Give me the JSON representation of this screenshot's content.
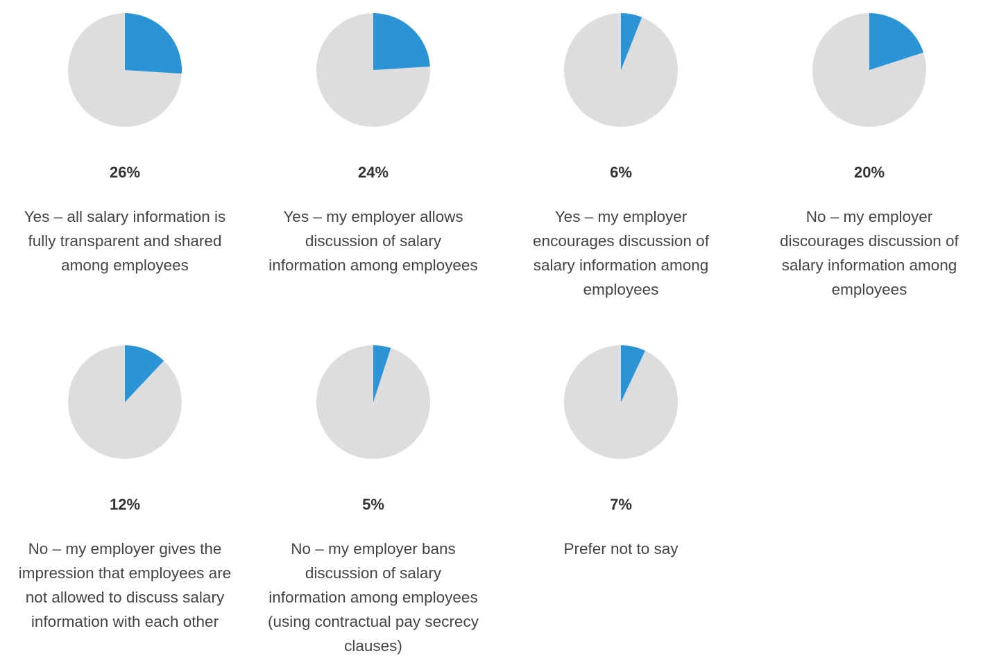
{
  "chart_data": {
    "type": "pie",
    "colors": {
      "highlight": "#2a94d6",
      "remainder": "#dddddd"
    },
    "charts": [
      {
        "value": 26,
        "value_label": "26%",
        "label": "Yes – all salary information is fully transparent and shared among employees"
      },
      {
        "value": 24,
        "value_label": "24%",
        "label": "Yes – my employer allows discussion of salary information among employees"
      },
      {
        "value": 6,
        "value_label": "6%",
        "label": "Yes – my employer encourages discussion of salary information among employees"
      },
      {
        "value": 20,
        "value_label": "20%",
        "label": "No – my employer discourages discussion of salary information among employees"
      },
      {
        "value": 12,
        "value_label": "12%",
        "label": "No – my employer gives the impression that employees are not allowed to discuss salary information with each other"
      },
      {
        "value": 5,
        "value_label": "5%",
        "label": "No – my employer bans discussion of salary information among employees (using contractual pay secrecy clauses)"
      },
      {
        "value": 7,
        "value_label": "7%",
        "label": "Prefer not to say"
      }
    ]
  }
}
